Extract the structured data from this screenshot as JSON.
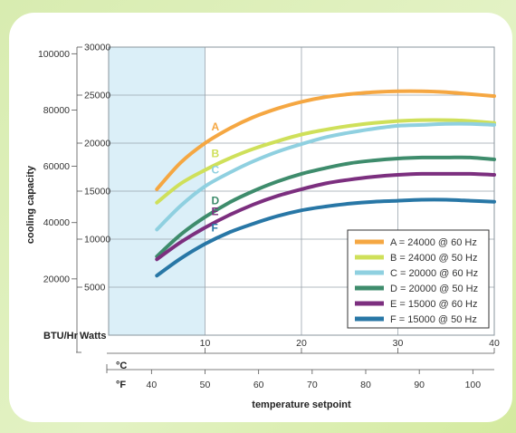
{
  "chart_data": {
    "type": "line",
    "xlabel": "temperature setpoint",
    "ylabel": "cooling capacity",
    "x_unit_primary": "°C",
    "x_unit_secondary": "°F",
    "y_unit_left": "BTU/Hr",
    "y_unit_right": "Watts",
    "celsius_ticks": [
      10,
      20,
      30,
      40
    ],
    "fahrenheit_ticks": [
      40,
      50,
      60,
      70,
      80,
      90,
      100
    ],
    "watts_ticks": [
      5000,
      10000,
      15000,
      20000,
      25000,
      30000
    ],
    "btu_ticks": [
      20000,
      40000,
      60000,
      80000,
      100000
    ],
    "xlim_celsius": [
      0,
      40
    ],
    "ylim_watts": [
      0,
      30000
    ],
    "shaded_region_celsius": [
      0,
      10
    ],
    "grid": true,
    "legend_position": "lower-right",
    "colors": {
      "A": "#f5a742",
      "B": "#cfe05a",
      "C": "#8fd0e0",
      "D": "#3e8c6c",
      "E": "#7c2f7f",
      "F": "#2877a6",
      "shaded": "#dbeff8"
    },
    "x": [
      5,
      7.5,
      10,
      12.5,
      15,
      17.5,
      20,
      22.5,
      25,
      27.5,
      30,
      32.5,
      35,
      37.5,
      40
    ],
    "series": [
      {
        "name": "A = 24000 @ 60 Hz",
        "label": "A",
        "values": [
          15200,
          18000,
          20000,
          21500,
          22700,
          23600,
          24300,
          24800,
          25100,
          25300,
          25400,
          25400,
          25300,
          25100,
          24900
        ]
      },
      {
        "name": "B = 24000 @ 50 Hz",
        "label": "B",
        "values": [
          13800,
          15800,
          17200,
          18400,
          19400,
          20200,
          20900,
          21400,
          21800,
          22100,
          22300,
          22400,
          22400,
          22300,
          22100
        ]
      },
      {
        "name": "C = 20000 @ 60 Hz",
        "label": "C",
        "values": [
          11000,
          13500,
          15500,
          16900,
          18100,
          19100,
          19900,
          20600,
          21100,
          21500,
          21800,
          21900,
          22000,
          22000,
          21900
        ]
      },
      {
        "name": "D = 20000 @ 50 Hz",
        "label": "D",
        "values": [
          8200,
          10500,
          12300,
          13800,
          15000,
          16000,
          16800,
          17400,
          17900,
          18200,
          18400,
          18500,
          18500,
          18500,
          18300
        ]
      },
      {
        "name": "E = 15000 @ 60 Hz",
        "label": "E",
        "values": [
          7900,
          9700,
          11200,
          12500,
          13600,
          14500,
          15200,
          15800,
          16200,
          16500,
          16700,
          16800,
          16800,
          16800,
          16700
        ]
      },
      {
        "name": "F = 15000 @ 50 Hz",
        "label": "F",
        "values": [
          6200,
          8000,
          9500,
          10700,
          11600,
          12400,
          13000,
          13400,
          13700,
          13900,
          14000,
          14100,
          14100,
          14000,
          13900
        ]
      }
    ]
  }
}
